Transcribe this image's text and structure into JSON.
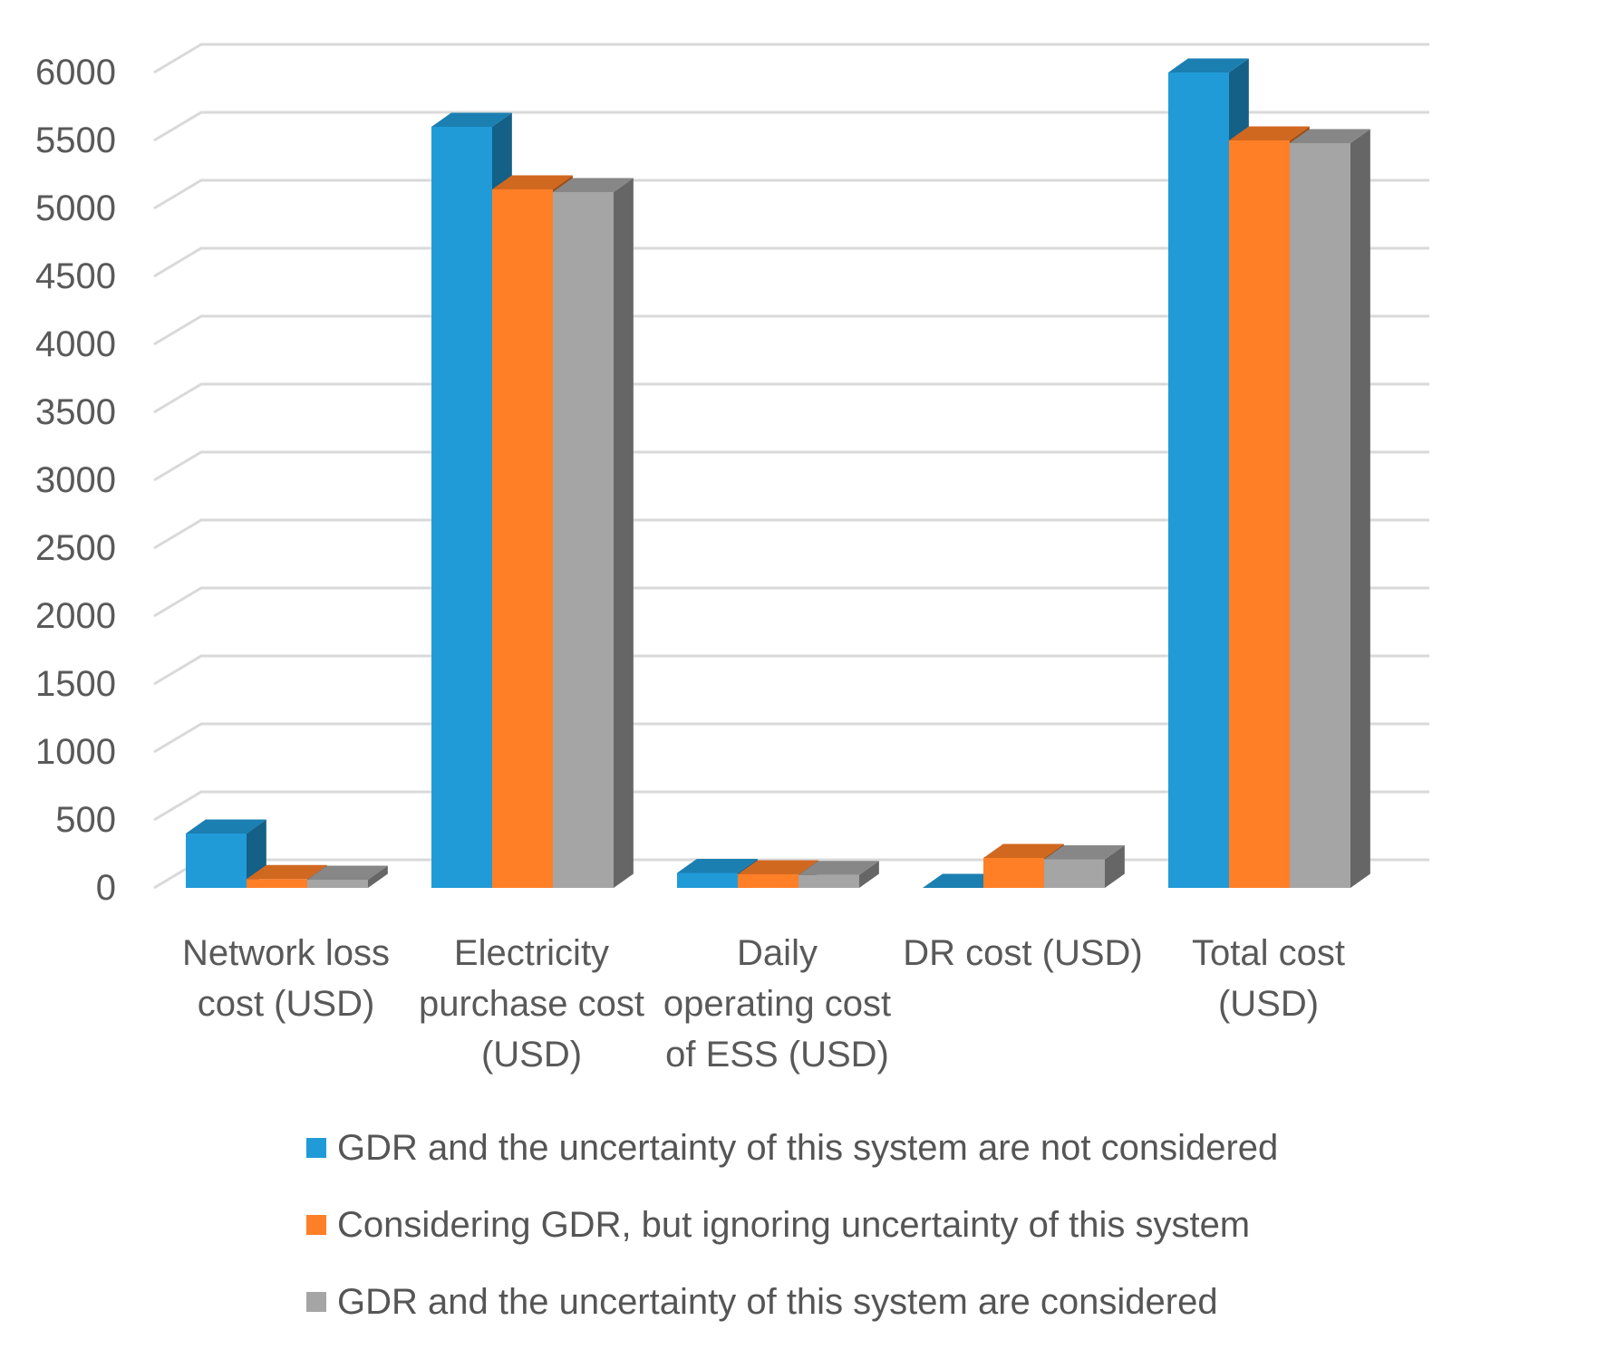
{
  "chart_data": {
    "type": "bar",
    "style": "3d-clustered-column",
    "title": "",
    "xlabel": "",
    "ylabel": "",
    "ylim": [
      0,
      6000
    ],
    "yticks": [
      0,
      500,
      1000,
      1500,
      2000,
      2500,
      3000,
      3500,
      4000,
      4500,
      5000,
      5500,
      6000
    ],
    "grid": true,
    "legend_position": "bottom",
    "categories": [
      [
        "Network loss",
        "cost (USD)"
      ],
      [
        "Electricity",
        "purchase cost",
        "(USD)"
      ],
      [
        "Daily",
        "operating cost",
        "of ESS (USD)"
      ],
      [
        "DR cost (USD)"
      ],
      [
        "Total cost",
        "(USD)"
      ]
    ],
    "series": [
      {
        "name": "GDR and the uncertainty of this system are not considered",
        "color": "#219BD8",
        "values": [
          400,
          5600,
          110,
          0,
          6000
        ]
      },
      {
        "name": "Considering GDR, but ignoring uncertainty of this system",
        "color": "#FF7F27",
        "values": [
          65,
          5140,
          100,
          220,
          5500
        ]
      },
      {
        "name": "GDR and the uncertainty of this system are considered",
        "color": "#A5A5A5",
        "values": [
          60,
          5120,
          95,
          210,
          5480
        ]
      }
    ]
  }
}
